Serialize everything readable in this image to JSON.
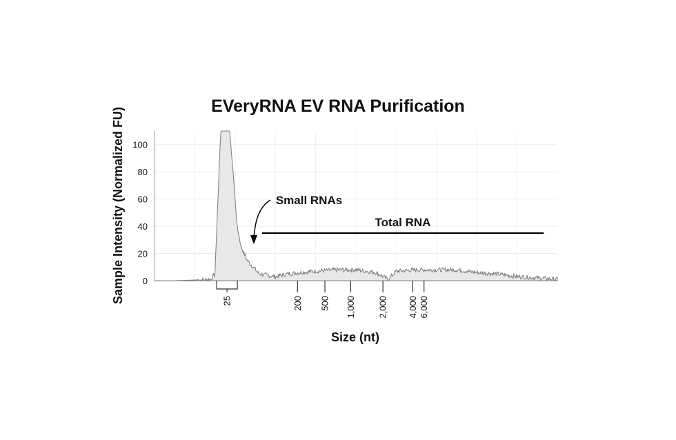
{
  "chart_data": {
    "type": "area",
    "title": "EVeryRNA EV RNA Purification",
    "xlabel": "Size (nt)",
    "ylabel": "Sample Intensity (Normalized FU)",
    "ylim": [
      0,
      110
    ],
    "yticks": [
      0,
      20,
      40,
      60,
      80,
      100
    ],
    "xticks": [
      {
        "label": "25",
        "t": 0.18
      },
      {
        "label": "200",
        "t": 0.355
      },
      {
        "label": "500",
        "t": 0.423
      },
      {
        "label": "1,000",
        "t": 0.487
      },
      {
        "label": "2,000",
        "t": 0.567
      },
      {
        "label": "4,000",
        "t": 0.641
      },
      {
        "label": "6,000",
        "t": 0.669
      }
    ],
    "grid": true,
    "series": [
      {
        "t": [
          0.0,
          0.05,
          0.1,
          0.14,
          0.15,
          0.165,
          0.175,
          0.185,
          0.195,
          0.205,
          0.215,
          0.23,
          0.245,
          0.26,
          0.28,
          0.3,
          0.33,
          0.36,
          0.4,
          0.45,
          0.5,
          0.55,
          0.58,
          0.6,
          0.65,
          0.7,
          0.75,
          0.8,
          0.85,
          0.9,
          0.95,
          1.0
        ],
        "values": [
          0,
          0,
          0.5,
          1,
          5,
          115,
          115,
          115,
          80,
          40,
          25,
          15,
          10,
          5,
          4,
          3,
          5,
          6,
          7,
          8,
          8,
          6,
          1,
          7,
          8,
          8,
          8,
          6,
          5,
          3,
          2,
          1
        ]
      }
    ],
    "annotations": [
      {
        "text": "Small RNAs",
        "type": "arrow"
      },
      {
        "text": "Total RNA",
        "type": "bar"
      }
    ]
  }
}
